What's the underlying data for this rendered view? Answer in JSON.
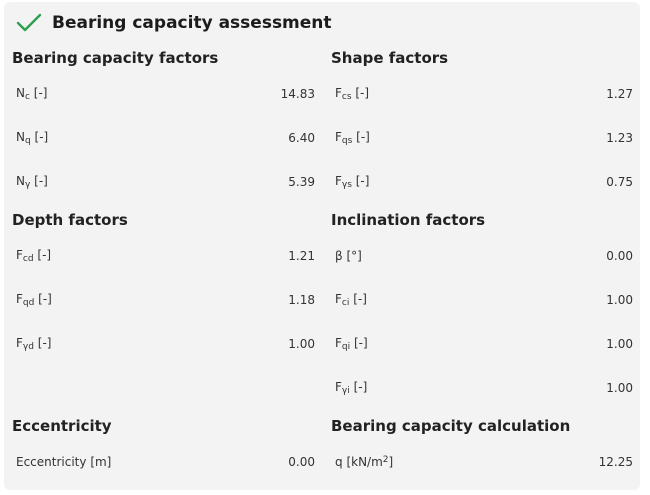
{
  "title": "Bearing capacity assessment",
  "sections": {
    "bearing_factors": {
      "title": "Bearing capacity factors",
      "rows": [
        {
          "sym": "N",
          "sub": "c",
          "unit": "[-]",
          "value": "14.83"
        },
        {
          "sym": "N",
          "sub": "q",
          "unit": "[-]",
          "value": "6.40"
        },
        {
          "sym": "N",
          "sub": "γ",
          "unit": "[-]",
          "value": "5.39"
        }
      ]
    },
    "shape_factors": {
      "title": "Shape factors",
      "rows": [
        {
          "sym": "F",
          "sub": "cs",
          "unit": "[-]",
          "value": "1.27"
        },
        {
          "sym": "F",
          "sub": "qs",
          "unit": "[-]",
          "value": "1.23"
        },
        {
          "sym": "F",
          "sub": "γs",
          "unit": "[-]",
          "value": "0.75"
        }
      ]
    },
    "depth_factors": {
      "title": "Depth factors",
      "rows": [
        {
          "sym": "F",
          "sub": "cd",
          "unit": "[-]",
          "value": "1.21"
        },
        {
          "sym": "F",
          "sub": "qd",
          "unit": "[-]",
          "value": "1.18"
        },
        {
          "sym": "F",
          "sub": "γd",
          "unit": "[-]",
          "value": "1.00"
        }
      ]
    },
    "inclination_factors": {
      "title": "Inclination factors",
      "rows": [
        {
          "sym": "β",
          "sub": "",
          "unit": "[°]",
          "value": "0.00"
        },
        {
          "sym": "F",
          "sub": "ci",
          "unit": "[-]",
          "value": "1.00"
        },
        {
          "sym": "F",
          "sub": "qi",
          "unit": "[-]",
          "value": "1.00"
        },
        {
          "sym": "F",
          "sub": "γi",
          "unit": "[-]",
          "value": "1.00"
        }
      ]
    },
    "eccentricity": {
      "title": "Eccentricity",
      "rows": [
        {
          "sym": "Eccentricity",
          "sub": "",
          "unit": "[m]",
          "value": "0.00"
        }
      ]
    },
    "bearing_calc": {
      "title": "Bearing capacity calculation",
      "rows": [
        {
          "sym": "q",
          "sub": "",
          "unit": "[kN/m",
          "sup": "2",
          "unit_end": "]",
          "value": "12.25"
        }
      ]
    }
  },
  "colors": {
    "check": "#2e9e4f",
    "panel": "#f3f3f3"
  }
}
